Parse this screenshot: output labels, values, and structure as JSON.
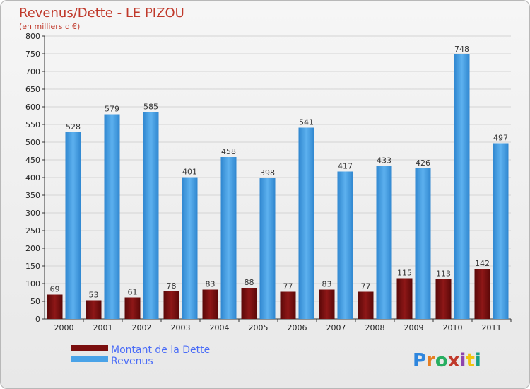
{
  "chart_data": {
    "type": "bar",
    "title": "Revenus/Dette - LE PIZOU",
    "subtitle": "(en milliers d'€)",
    "categories": [
      "2000",
      "2001",
      "2002",
      "2003",
      "2004",
      "2005",
      "2006",
      "2007",
      "2008",
      "2009",
      "2010",
      "2011"
    ],
    "series": [
      {
        "name": "Montant de la Dette",
        "color": "#7a0e0e",
        "values": [
          69,
          53,
          61,
          78,
          83,
          88,
          77,
          83,
          77,
          115,
          113,
          142
        ]
      },
      {
        "name": "Revenus",
        "color": "#4aa3e8",
        "values": [
          528,
          579,
          585,
          401,
          458,
          398,
          541,
          417,
          433,
          426,
          748,
          497
        ]
      }
    ],
    "yticks": [
      0,
      50,
      100,
      150,
      200,
      250,
      300,
      350,
      400,
      450,
      500,
      550,
      600,
      650,
      700,
      750,
      800
    ],
    "ylim": [
      0,
      800
    ],
    "grid": "horizontal",
    "legend_position": "bottom-left"
  },
  "logo": {
    "text": "Proxiti",
    "letter_colors": [
      "#2e86de",
      "#e67e22",
      "#27ae60",
      "#c0392b",
      "#8e44ad",
      "#f1c40f",
      "#16a085"
    ]
  }
}
